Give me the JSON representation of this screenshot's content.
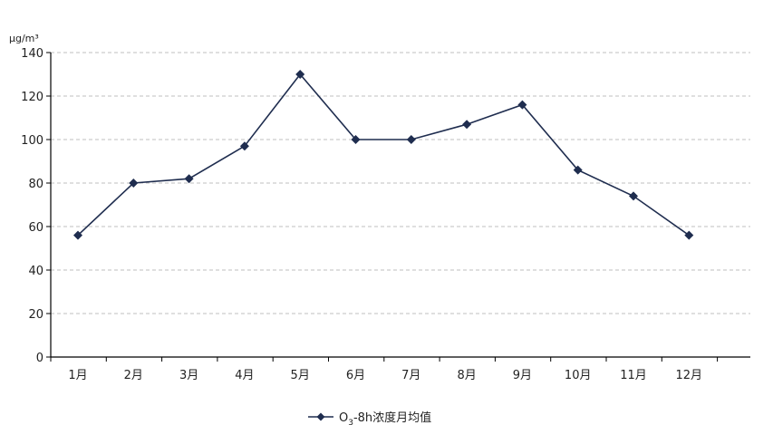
{
  "chart_data": {
    "type": "line",
    "title": "",
    "unit_label": "μg/m³",
    "xlabel": "",
    "ylabel": "",
    "categories": [
      "1月",
      "2月",
      "3月",
      "4月",
      "5月",
      "6月",
      "7月",
      "8月",
      "9月",
      "10月",
      "11月",
      "12月"
    ],
    "series": [
      {
        "name": "O3-8h浓度月均值",
        "legend_parts": {
          "pre": "O",
          "sub": "3",
          "post": "-8h浓度月均值"
        },
        "values": [
          56,
          80,
          82,
          97,
          130,
          100,
          100,
          107,
          116,
          86,
          74,
          56
        ],
        "color": "#1f2d4f"
      }
    ],
    "ylim": [
      0,
      140
    ],
    "yticks": [
      0,
      20,
      40,
      60,
      80,
      100,
      120,
      140
    ],
    "grid": {
      "y": true,
      "x": false,
      "style": "dashed"
    },
    "legend_position": "bottom-center",
    "colors": {
      "line": "#1f2d4f",
      "grid": "#bfbfbf",
      "axis": "#000000"
    }
  }
}
